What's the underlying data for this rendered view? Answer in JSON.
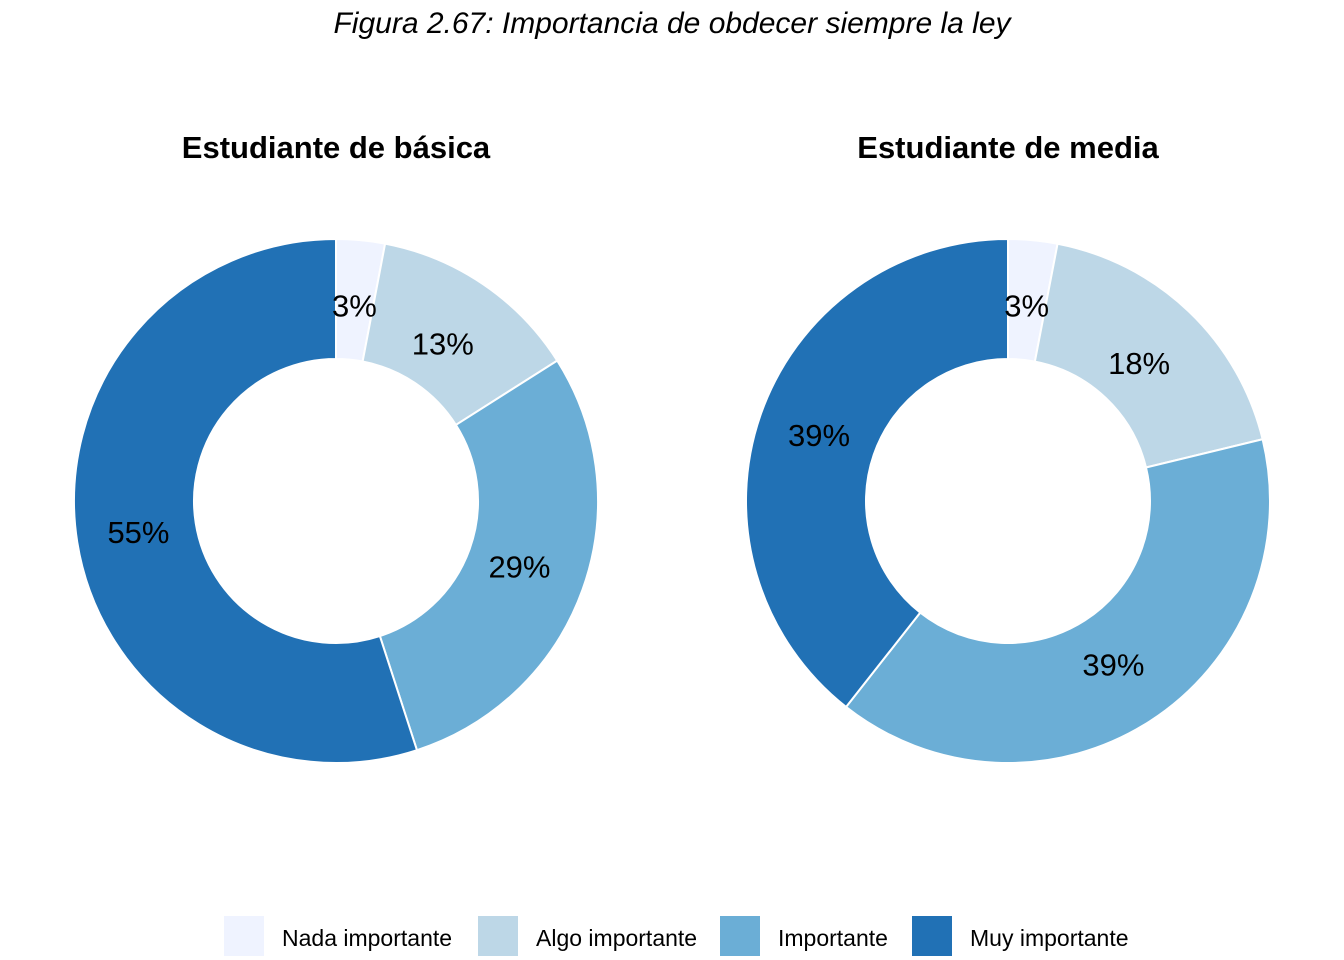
{
  "figure_title": "Figura 2.67: Importancia de obdecer siempre la ley",
  "legend": {
    "items": [
      {
        "label": "Nada importante",
        "color": "#eff3ff"
      },
      {
        "label": "Algo importante",
        "color": "#bdd7e7"
      },
      {
        "label": "Importante",
        "color": "#6baed6"
      },
      {
        "label": "Muy importante",
        "color": "#2171b5"
      }
    ]
  },
  "chart_data": [
    {
      "type": "pie",
      "style": "donut",
      "title": "Estudiante de básica",
      "categories": [
        "Nada importante",
        "Algo importante",
        "Importante",
        "Muy importante"
      ],
      "values": [
        3,
        13,
        29,
        55
      ],
      "labels": [
        "3%",
        "13%",
        "29%",
        "55%"
      ],
      "colors": [
        "#eff3ff",
        "#bdd7e7",
        "#6baed6",
        "#2171b5"
      ]
    },
    {
      "type": "pie",
      "style": "donut",
      "title": "Estudiante de media",
      "categories": [
        "Nada importante",
        "Algo importante",
        "Importante",
        "Muy importante"
      ],
      "values": [
        3,
        18,
        39,
        39
      ],
      "labels": [
        "3%",
        "18%",
        "39%",
        "39%"
      ],
      "colors": [
        "#eff3ff",
        "#bdd7e7",
        "#6baed6",
        "#2171b5"
      ]
    }
  ]
}
